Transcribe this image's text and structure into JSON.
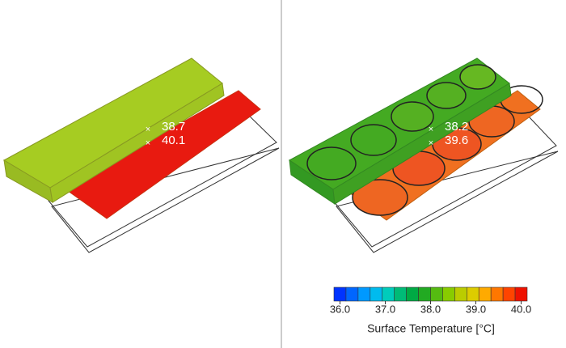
{
  "panels": [
    {
      "probes": [
        38.7,
        40.1
      ]
    },
    {
      "probes": [
        38.2,
        39.6
      ]
    }
  ],
  "colorbar": {
    "title": "Surface Temperature [°C]",
    "range": [
      36,
      40
    ],
    "ticks": [
      {
        "value": 36,
        "label": "36.0"
      },
      {
        "value": 37,
        "label": "37.0"
      },
      {
        "value": 38,
        "label": "38.0"
      },
      {
        "value": 39,
        "label": "39.0"
      },
      {
        "value": 40,
        "label": "40.0"
      }
    ],
    "colors": [
      "#0033ff",
      "#0066ff",
      "#0099ff",
      "#00bbee",
      "#00ccbb",
      "#00bb77",
      "#00aa44",
      "#22aa22",
      "#55bb11",
      "#88cc00",
      "#bbcc00",
      "#ddcc00",
      "#ffaa00",
      "#ff7700",
      "#ff4400",
      "#ee1100"
    ]
  }
}
